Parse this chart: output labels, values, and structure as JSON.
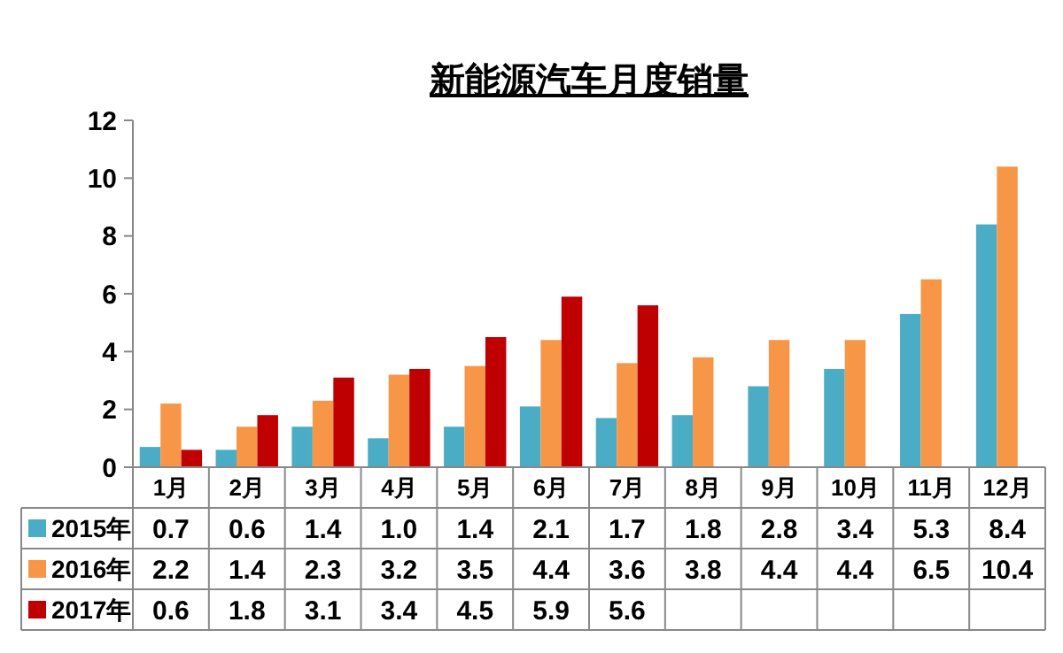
{
  "chart_data": {
    "type": "bar",
    "title": "新能源汽车月度销量",
    "categories": [
      "1月",
      "2月",
      "3月",
      "4月",
      "5月",
      "6月",
      "7月",
      "8月",
      "9月",
      "10月",
      "11月",
      "12月"
    ],
    "series": [
      {
        "name": "2015年",
        "color": "#4bacc6",
        "values": [
          0.7,
          0.6,
          1.4,
          1.0,
          1.4,
          2.1,
          1.7,
          1.8,
          2.8,
          3.4,
          5.3,
          8.4
        ],
        "value_labels": [
          "0.7",
          "0.6",
          "1.4",
          "1.0",
          "1.4",
          "2.1",
          "1.7",
          "1.8",
          "2.8",
          "3.4",
          "5.3",
          "8.4"
        ]
      },
      {
        "name": "2016年",
        "color": "#f79646",
        "values": [
          2.2,
          1.4,
          2.3,
          3.2,
          3.5,
          4.4,
          3.6,
          3.8,
          4.4,
          4.4,
          6.5,
          10.4
        ],
        "value_labels": [
          "2.2",
          "1.4",
          "2.3",
          "3.2",
          "3.5",
          "4.4",
          "3.6",
          "3.8",
          "4.4",
          "4.4",
          "6.5",
          "10.4"
        ]
      },
      {
        "name": "2017年",
        "color": "#c00000",
        "values": [
          0.6,
          1.8,
          3.1,
          3.4,
          4.5,
          5.9,
          5.6,
          null,
          null,
          null,
          null,
          null
        ],
        "value_labels": [
          "0.6",
          "1.8",
          "3.1",
          "3.4",
          "4.5",
          "5.9",
          "5.6",
          null,
          null,
          null,
          null,
          null
        ]
      }
    ],
    "ylim": [
      0,
      12
    ],
    "yticks": [
      0,
      2,
      4,
      6,
      8,
      10,
      12
    ],
    "legend": "bottom",
    "grid": false
  }
}
